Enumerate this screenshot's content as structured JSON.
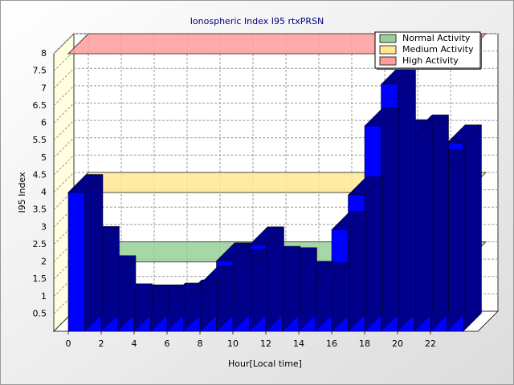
{
  "chart_data": {
    "type": "bar3d",
    "title": "Ionospheric Index I95 rtxPRSN",
    "x_label": "Hour[Local time]",
    "y_label": "I95 Index",
    "categories": [
      "0",
      null,
      "2",
      null,
      "4",
      null,
      "6",
      null,
      "8",
      null,
      "10",
      null,
      "12",
      null,
      "14",
      null,
      "16",
      null,
      "18",
      null,
      "20",
      null,
      "22",
      null
    ],
    "values": [
      4.0,
      2.5,
      1.66,
      0.85,
      0.82,
      0.82,
      0.87,
      0.96,
      1.36,
      2.03,
      1.84,
      2.49,
      1.93,
      1.89,
      1.5,
      1.45,
      2.93,
      3.93,
      5.92,
      7.12,
      5.58,
      5.72,
      4.72,
      5.43
    ],
    "color": "#0000ff",
    "side_color": "#00008b",
    "ylim": [
      0,
      8
    ],
    "yticks": [
      0.5,
      1,
      1.5,
      2,
      2.5,
      3,
      3.5,
      4,
      4.5,
      5,
      5.5,
      6,
      6.5,
      7,
      7.5,
      8
    ],
    "grid": true,
    "legend": "upper right",
    "bands": [
      {
        "name": "Normal Activity",
        "color": "#98d098",
        "value": 2
      },
      {
        "name": "Medium Activity",
        "color": "#ffe890",
        "value": 4
      },
      {
        "name": "High Activity",
        "color": "#ff9c9c",
        "value": 8
      }
    ]
  }
}
